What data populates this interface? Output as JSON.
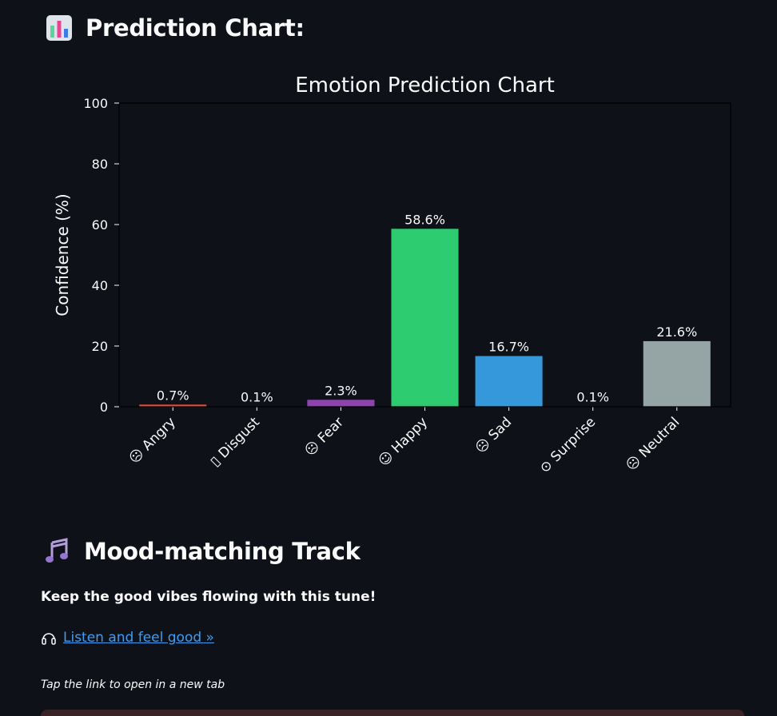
{
  "chart_section": {
    "title": "Prediction Chart:",
    "icon": "bar-chart-icon"
  },
  "chart_data": {
    "type": "bar",
    "title": "Emotion Prediction Chart",
    "xlabel": "",
    "ylabel": "Confidence (%)",
    "ylim": [
      0,
      100
    ],
    "yticks": [
      0,
      20,
      40,
      60,
      80,
      100
    ],
    "grid": false,
    "categories": [
      "😠 Angry",
      "🤢 Disgust",
      "😨 Fear",
      "😊 Happy",
      "😢 Sad",
      "😲 Surprise",
      "😐 Neutral"
    ],
    "tick_labels": [
      "☹ Angry",
      "▯ Disgust",
      "☹ Fear",
      "☺ Happy",
      "☹ Sad",
      "⊙ Surprise",
      "☹ Neutral"
    ],
    "values": [
      0.7,
      0.1,
      2.3,
      58.6,
      16.7,
      0.1,
      21.6
    ],
    "value_labels": [
      "0.7%",
      "0.1%",
      "2.3%",
      "58.6%",
      "16.7%",
      "0.1%",
      "21.6%"
    ],
    "colors": [
      "#e74c3c",
      "#8e9e6b",
      "#8e44ad",
      "#2ecc71",
      "#3498db",
      "#f1c40f",
      "#95a5a6"
    ]
  },
  "track_section": {
    "title": "Mood-matching Track",
    "icon": "music-notes-icon",
    "message": "Keep the good vibes flowing with this tune!",
    "link_label": "Listen and feel good »",
    "link_icon": "headphones-icon",
    "note": "Tap the link to open in a new tab"
  }
}
